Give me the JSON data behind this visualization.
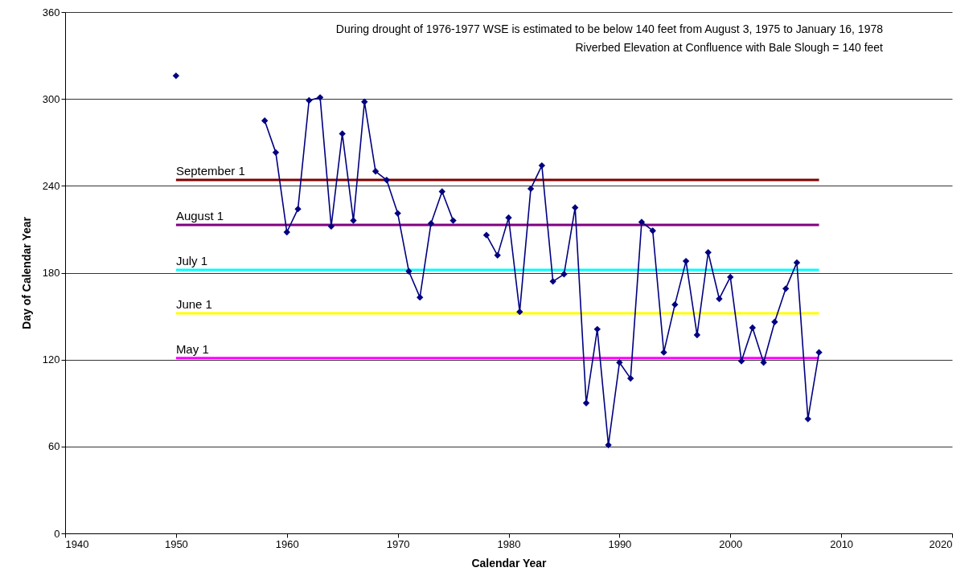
{
  "chart_data": {
    "type": "line",
    "xlabel": "Calendar Year",
    "ylabel": "Day of Calendar Year",
    "xlim": [
      1940,
      2020
    ],
    "xticks": [
      1940,
      1950,
      1960,
      1970,
      1980,
      1990,
      2000,
      2010,
      2020
    ],
    "ylim": [
      0,
      360
    ],
    "yticks": [
      0,
      60,
      120,
      180,
      240,
      300,
      360
    ],
    "grid": "y",
    "marker": "diamond",
    "series": [
      {
        "color": "#000080",
        "x": [
          1950
        ],
        "values": [
          316
        ]
      },
      {
        "color": "#000080",
        "x": [
          1958,
          1959,
          1960,
          1961,
          1962,
          1963,
          1964,
          1965,
          1966,
          1967,
          1968,
          1969,
          1970,
          1971,
          1972,
          1973,
          1974,
          1975
        ],
        "values": [
          285,
          263,
          208,
          224,
          299,
          301,
          212,
          276,
          216,
          298,
          250,
          244,
          221,
          181,
          163,
          214,
          236,
          216
        ]
      },
      {
        "color": "#000080",
        "x": [
          1978,
          1979,
          1980,
          1981,
          1982,
          1983,
          1984,
          1985,
          1986,
          1987,
          1988,
          1989,
          1990,
          1991,
          1992,
          1993,
          1994,
          1995,
          1996,
          1997,
          1998,
          1999,
          2000,
          2001,
          2002,
          2003,
          2004,
          2005,
          2006,
          2007,
          2008
        ],
        "values": [
          206,
          192,
          218,
          153,
          238,
          254,
          174,
          179,
          225,
          90,
          141,
          61,
          118,
          107,
          215,
          209,
          125,
          158,
          188,
          137,
          194,
          162,
          177,
          119,
          142,
          118,
          146,
          169,
          187,
          79,
          125
        ]
      }
    ],
    "ref_lines": [
      {
        "axis": "y",
        "value": 244,
        "label": "September 1",
        "color": "#800000"
      },
      {
        "axis": "y",
        "value": 213,
        "label": "August 1",
        "color": "#800080"
      },
      {
        "axis": "y",
        "value": 182,
        "label": "July 1",
        "color": "#00ffff"
      },
      {
        "axis": "y",
        "value": 152,
        "label": "June 1",
        "color": "#ffff00"
      },
      {
        "axis": "y",
        "value": 121,
        "label": "May 1",
        "color": "#ff00ff"
      }
    ],
    "annotations": [
      "During drought of 1976-1977 WSE is estimated to be below 140 feet from August 3, 1975 to January 16, 1978",
      "Riverbed Elevation at Confluence with Bale Slough  = 140 feet"
    ]
  }
}
